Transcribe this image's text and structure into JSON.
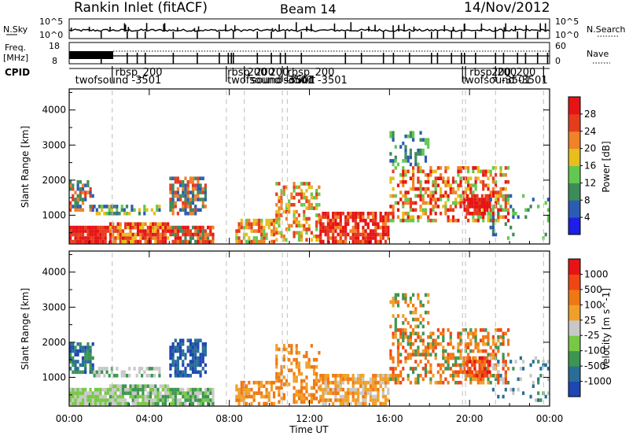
{
  "header": {
    "station": "Rankin Inlet (fitACF)",
    "beam": "Beam 14",
    "date": "14/Nov/2012"
  },
  "strips": {
    "nsky_label": "N.Sky",
    "nsky_ticks": [
      "10^5",
      "10^0"
    ],
    "nsearch_label": "N.Search",
    "freq_label": "Freq.",
    "freq_unit": "[MHz]",
    "freq_ticks": [
      "18",
      "8"
    ],
    "nave_label": "Nave",
    "nave_ticks": [
      "60",
      "0"
    ],
    "cpid_label": "CPID",
    "cpid_labels": [
      {
        "text": "rbsp_200",
        "time": 2.3,
        "row": 0
      },
      {
        "text": "twofsound -3501",
        "time": 0.3,
        "row": 1
      },
      {
        "text": "rbsp_200",
        "time": 7.9,
        "row": 0
      },
      {
        "text": "200",
        "time": 8.9,
        "row": 0
      },
      {
        "text": "200",
        "time": 10.0,
        "row": 0
      },
      {
        "text": "rbsp_200",
        "time": 10.9,
        "row": 0
      },
      {
        "text": "twofsound -3501",
        "time": 7.9,
        "row": 1
      },
      {
        "text": "sound -3501",
        "time": 9.1,
        "row": 1
      },
      {
        "text": "sound -3501",
        "time": 10.7,
        "row": 1
      },
      {
        "text": "rbsp_200",
        "time": 20.0,
        "row": 0
      },
      {
        "text": "200_200",
        "time": 21.1,
        "row": 0
      },
      {
        "text": "twofsound -3501",
        "time": 19.6,
        "row": 1
      },
      {
        "text": "-3501",
        "time": 21.6,
        "row": 1
      }
    ]
  },
  "chart_data": [
    {
      "type": "heatmap",
      "parameter": "Power",
      "ylabel": "Slant Range [km]",
      "xlim": [
        0,
        24
      ],
      "ylim": [
        180,
        4600
      ],
      "yticks": [
        1000,
        2000,
        3000,
        4000
      ],
      "colorbar": {
        "label": "Power [dB]",
        "ticks": [
          "4",
          "8",
          "12",
          "16",
          "20",
          "24",
          "28"
        ],
        "colors": [
          "#1e1ee6",
          "#2a5cb4",
          "#3c8c5a",
          "#64c850",
          "#e6be1e",
          "#f08228",
          "#e63c1e",
          "#e61414"
        ]
      }
    },
    {
      "type": "heatmap",
      "parameter": "Velocity",
      "ylabel": "Slant Range [km]",
      "xlabel": "Time UT",
      "xlim": [
        0,
        24
      ],
      "ylim": [
        180,
        4600
      ],
      "yticks": [
        1000,
        2000,
        3000,
        4000
      ],
      "xticks": [
        "00:00",
        "04:00",
        "08:00",
        "12:00",
        "16:00",
        "20:00",
        "00:00"
      ],
      "colorbar": {
        "label": "Velocity [m s^-1]",
        "ticks": [
          "1000",
          "500",
          "100",
          "25",
          "-25",
          "-100",
          "-500",
          "-1000"
        ],
        "colors": [
          "#1e46b4",
          "#286e96",
          "#3c9650",
          "#78c846",
          "#c8c8c8",
          "#f0a028",
          "#f07814",
          "#f04614",
          "#e61414"
        ]
      }
    }
  ]
}
